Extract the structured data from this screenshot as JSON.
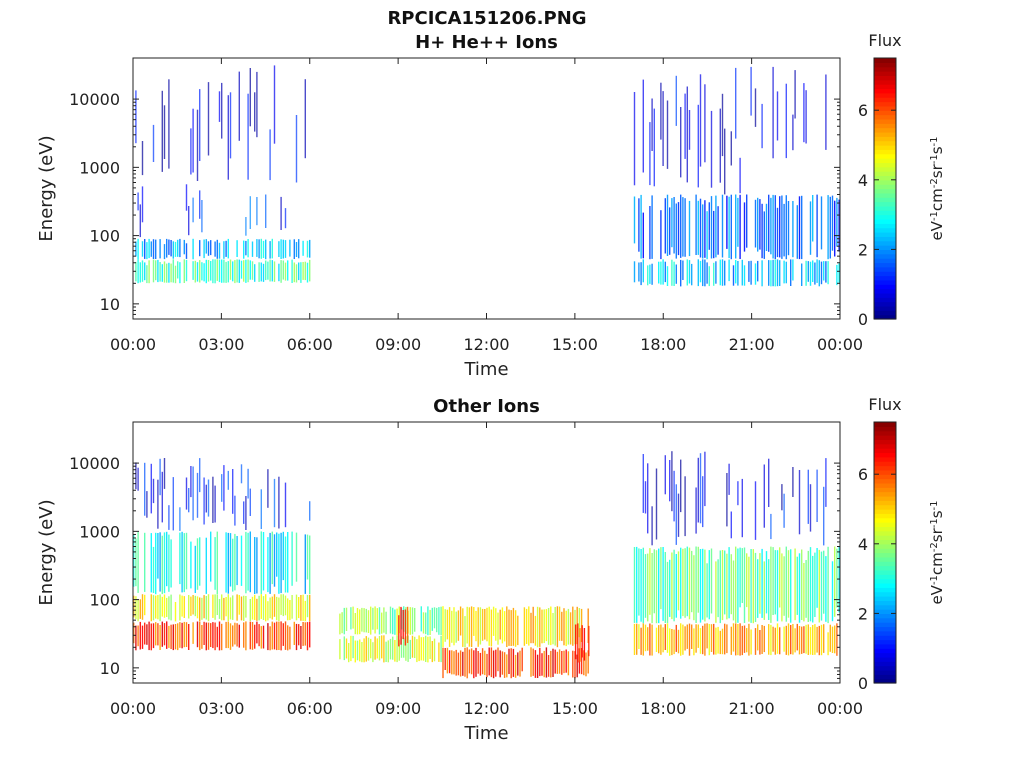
{
  "figure": {
    "filename": "RPCICA151206.PNG"
  },
  "colors": {
    "colormap": [
      "#00007f",
      "#0000ff",
      "#007fff",
      "#00ffff",
      "#7fff7f",
      "#ffff00",
      "#ff7f00",
      "#ff0000",
      "#7f0000"
    ],
    "axes": "#222222",
    "background": "#ffffff"
  },
  "chart_data": [
    {
      "type": "heatmap",
      "title": "H+ He++ Ions",
      "xlabel": "Time",
      "ylabel": "Energy (eV)",
      "y_scale": "log",
      "ylim": [
        6,
        40000
      ],
      "y_ticks": [
        10,
        100,
        1000,
        10000
      ],
      "y_tick_labels": [
        "10",
        "100",
        "1000",
        "10000"
      ],
      "xlim_hours": [
        0,
        24
      ],
      "x_tick_labels": [
        "00:00",
        "03:00",
        "06:00",
        "09:00",
        "12:00",
        "15:00",
        "18:00",
        "21:00",
        "00:00"
      ],
      "colorbar": {
        "title": "Flux",
        "unit": "eV-1cm-2sr-1s-1",
        "range": [
          0,
          7.5
        ],
        "ticks": [
          0,
          2,
          4,
          6
        ],
        "tick_labels": [
          "0",
          "2",
          "4",
          "6"
        ]
      },
      "data_blocks": [
        {
          "start": "00:00",
          "end": "06:00",
          "bands": [
            {
              "e_min": 20,
              "e_max": 45,
              "flux": 3.3
            },
            {
              "e_min": 45,
              "e_max": 90,
              "flux": 2.3
            },
            {
              "e_min": 90,
              "e_max": 600,
              "flux": 1.2
            },
            {
              "e_min": 600,
              "e_max": 35000,
              "flux": 0.6
            }
          ]
        },
        {
          "start": "17:00",
          "end": "24:00",
          "bands": [
            {
              "e_min": 18,
              "e_max": 45,
              "flux": 2.4
            },
            {
              "e_min": 45,
              "e_max": 400,
              "flux": 1.7
            },
            {
              "e_min": 400,
              "e_max": 30000,
              "flux": 0.7
            }
          ]
        }
      ]
    },
    {
      "type": "heatmap",
      "title": "Other Ions",
      "xlabel": "Time",
      "ylabel": "Energy (eV)",
      "y_scale": "log",
      "ylim": [
        6,
        40000
      ],
      "y_ticks": [
        10,
        100,
        1000,
        10000
      ],
      "y_tick_labels": [
        "10",
        "100",
        "1000",
        "10000"
      ],
      "xlim_hours": [
        0,
        24
      ],
      "x_tick_labels": [
        "00:00",
        "03:00",
        "06:00",
        "09:00",
        "12:00",
        "15:00",
        "18:00",
        "21:00",
        "00:00"
      ],
      "colorbar": {
        "title": "Flux",
        "unit": "eV-1cm-2sr-1s-1",
        "range": [
          0,
          7.5
        ],
        "ticks": [
          0,
          2,
          4,
          6
        ],
        "tick_labels": [
          "0",
          "2",
          "4",
          "6"
        ]
      },
      "data_blocks": [
        {
          "start": "00:00",
          "end": "06:00",
          "bands": [
            {
              "e_min": 18,
              "e_max": 48,
              "flux": 6.1
            },
            {
              "e_min": 48,
              "e_max": 120,
              "flux": 4.6
            },
            {
              "e_min": 120,
              "e_max": 1000,
              "flux": 2.8
            },
            {
              "e_min": 1000,
              "e_max": 12000,
              "flux": 1.0
            }
          ]
        },
        {
          "start": "07:00",
          "end": "10:30",
          "bands": [
            {
              "e_min": 12,
              "e_max": 30,
              "flux": 4.4
            },
            {
              "e_min": 30,
              "e_max": 80,
              "flux": 3.8
            }
          ]
        },
        {
          "start": "09:00",
          "end": "09:20",
          "bands": [
            {
              "e_min": 20,
              "e_max": 80,
              "flux": 6.6
            }
          ]
        },
        {
          "start": "10:30",
          "end": "15:30",
          "bands": [
            {
              "e_min": 7,
              "e_max": 20,
              "flux": 6.2
            },
            {
              "e_min": 20,
              "e_max": 80,
              "flux": 4.8
            }
          ]
        },
        {
          "start": "15:00",
          "end": "15:30",
          "bands": [
            {
              "e_min": 12,
              "e_max": 45,
              "flux": 5.8
            }
          ]
        },
        {
          "start": "17:00",
          "end": "24:00",
          "bands": [
            {
              "e_min": 15,
              "e_max": 45,
              "flux": 5.3
            },
            {
              "e_min": 45,
              "e_max": 600,
              "flux": 3.5
            },
            {
              "e_min": 600,
              "e_max": 15000,
              "flux": 0.8
            }
          ]
        }
      ]
    }
  ]
}
